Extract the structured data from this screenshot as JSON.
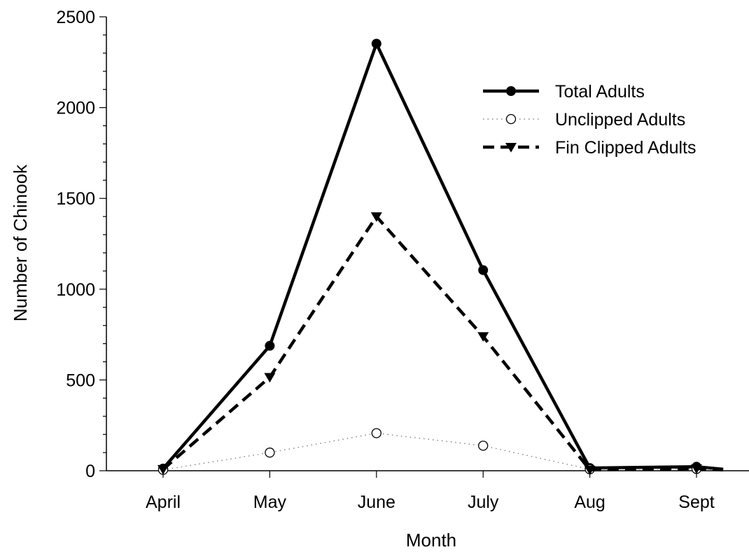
{
  "chart_data": {
    "type": "line",
    "title": "",
    "xlabel": "Month",
    "ylabel": "Number of Chinook",
    "categories": [
      "April",
      "May",
      "June",
      "July",
      "Aug",
      "Sept"
    ],
    "y_ticks": [
      "0",
      "500",
      "1000",
      "1500",
      "2000",
      "2500"
    ],
    "ylim": [
      0,
      2500
    ],
    "grid": false,
    "legend_position": "top-right",
    "series": [
      {
        "name": "Total Adults",
        "style": "solid",
        "marker": "filled-circle",
        "color": "#000000",
        "x": [
          0,
          1,
          2,
          3,
          4,
          5,
          5.25
        ],
        "values": [
          12,
          688,
          2352,
          1105,
          15,
          22,
          8
        ]
      },
      {
        "name": "Unclipped Adults",
        "style": "dotted",
        "marker": "open-circle",
        "color": "#000000",
        "x": [
          0,
          1,
          2,
          3,
          4,
          5,
          5.25
        ],
        "values": [
          5,
          100,
          207,
          138,
          8,
          10,
          5
        ]
      },
      {
        "name": "Fin Clipped Adults",
        "style": "dashed",
        "marker": "filled-triangle-down",
        "color": "#000000",
        "x": [
          0,
          1,
          2,
          3,
          4,
          5,
          5.25
        ],
        "values": [
          8,
          515,
          1400,
          740,
          5,
          12,
          5
        ]
      }
    ]
  }
}
